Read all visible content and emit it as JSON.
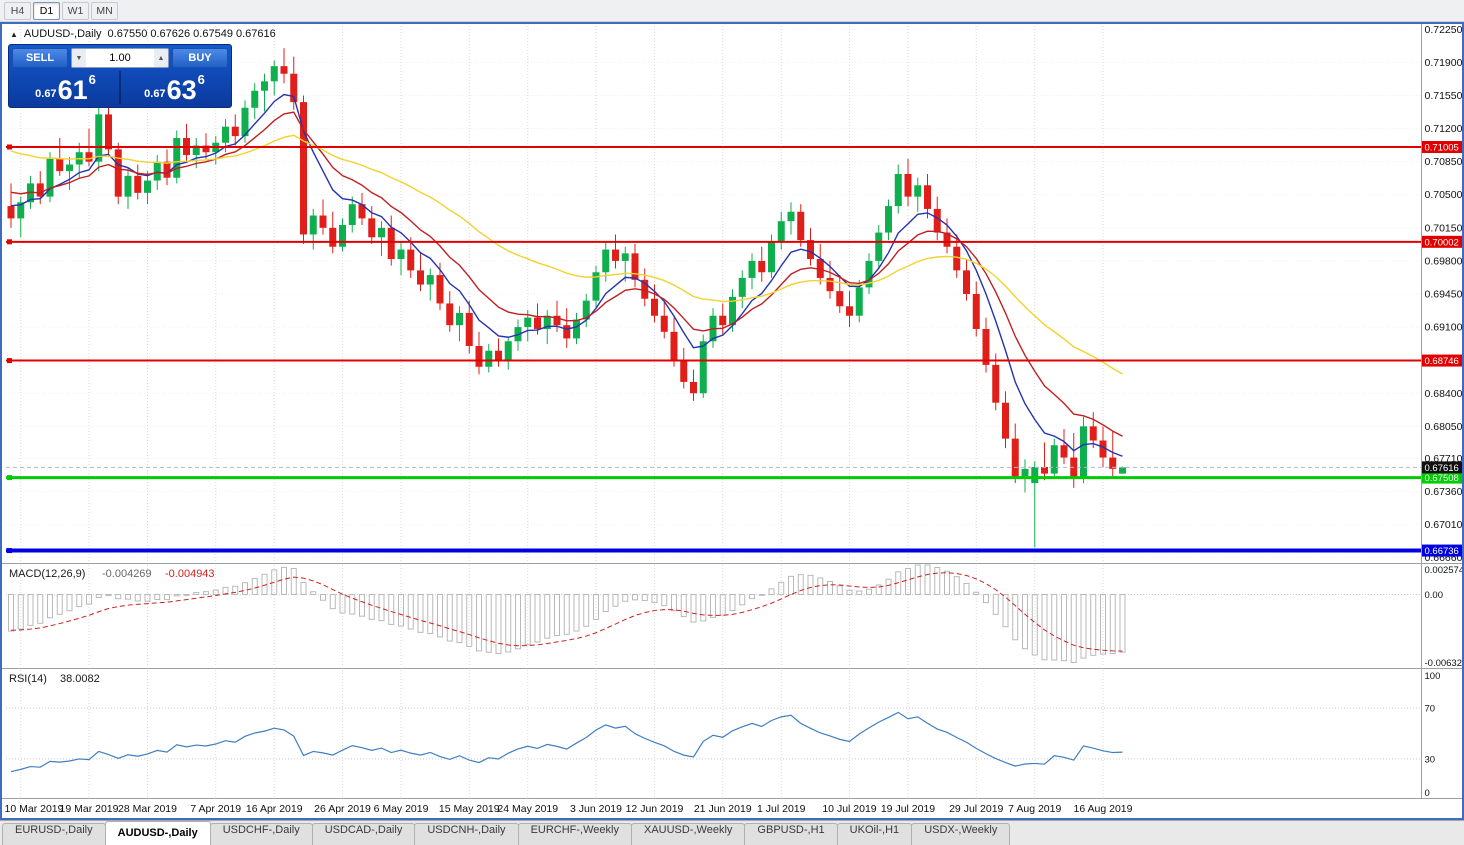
{
  "toolbar": {
    "timeframes": [
      {
        "label": "H4",
        "active": false
      },
      {
        "label": "D1",
        "active": true
      },
      {
        "label": "W1",
        "active": false
      },
      {
        "label": "MN",
        "active": false
      }
    ]
  },
  "chart_title": {
    "symbol": "AUDUSD-,Daily",
    "ohlc": "0.67550 0.67626 0.67549 0.67616"
  },
  "one_click": {
    "sell_label": "SELL",
    "buy_label": "BUY",
    "volume": "1.00",
    "sell_price": {
      "small": "0.67",
      "big": "61",
      "sup": "6"
    },
    "buy_price": {
      "small": "0.67",
      "big": "63",
      "sup": "6"
    }
  },
  "icons": {
    "up_arrow": "▲",
    "down_arrow": "▼",
    "title_marker": "▲"
  },
  "tabs": [
    {
      "label": "EURUSD-,Daily",
      "active": false
    },
    {
      "label": "AUDUSD-,Daily",
      "active": true
    },
    {
      "label": "USDCHF-,Daily",
      "active": false
    },
    {
      "label": "USDCAD-,Daily",
      "active": false
    },
    {
      "label": "USDCNH-,Daily",
      "active": false
    },
    {
      "label": "EURCHF-,Weekly",
      "active": false
    },
    {
      "label": "XAUUSD-,Weekly",
      "active": false
    },
    {
      "label": "GBPUSD-,H1",
      "active": false
    },
    {
      "label": "UKOil-,H1",
      "active": false
    },
    {
      "label": "USDX-,Weekly",
      "active": false
    }
  ],
  "chart_data": {
    "type": "candlestick",
    "symbol": "AUDUSD",
    "timeframe": "Daily",
    "last_ohlc": {
      "open": 0.6755,
      "high": 0.67626,
      "low": 0.67549,
      "close": 0.67616
    },
    "price_scale": {
      "top": 0.72285,
      "bottom": 0.66615
    },
    "y_axis_ticks": [
      "0.72250",
      "0.71900",
      "0.71550",
      "0.71200",
      "0.70850",
      "0.70500",
      "0.70150",
      "0.69800",
      "0.69450",
      "0.69100",
      "0.68750",
      "0.68400",
      "0.68050",
      "0.67710",
      "0.67360",
      "0.67010",
      "0.66660"
    ],
    "x_labels": [
      {
        "index": 1,
        "label": "10 Mar 2019"
      },
      {
        "index": 8,
        "label": "19 Mar 2019"
      },
      {
        "index": 14,
        "label": "28 Mar 2019"
      },
      {
        "index": 21,
        "label": "7 Apr 2019"
      },
      {
        "index": 27,
        "label": "16 Apr 2019"
      },
      {
        "index": 34,
        "label": "26 Apr 2019"
      },
      {
        "index": 40,
        "label": "6 May 2019"
      },
      {
        "index": 47,
        "label": "15 May 2019"
      },
      {
        "index": 53,
        "label": "24 May 2019"
      },
      {
        "index": 60,
        "label": "3 Jun 2019"
      },
      {
        "index": 66,
        "label": "12 Jun 2019"
      },
      {
        "index": 73,
        "label": "21 Jun 2019"
      },
      {
        "index": 79,
        "label": "1 Jul 2019"
      },
      {
        "index": 86,
        "label": "10 Jul 2019"
      },
      {
        "index": 92,
        "label": "19 Jul 2019"
      },
      {
        "index": 99,
        "label": "29 Jul 2019"
      },
      {
        "index": 105,
        "label": "7 Aug 2019"
      },
      {
        "index": 112,
        "label": "16 Aug 2019"
      }
    ],
    "candles": [
      [
        0.7038,
        0.7062,
        0.7015,
        0.7025
      ],
      [
        0.7025,
        0.7048,
        0.7005,
        0.7042
      ],
      [
        0.7042,
        0.707,
        0.7035,
        0.7062
      ],
      [
        0.7062,
        0.7075,
        0.704,
        0.7048
      ],
      [
        0.7048,
        0.7095,
        0.7042,
        0.7088
      ],
      [
        0.7088,
        0.711,
        0.707,
        0.7075
      ],
      [
        0.7075,
        0.709,
        0.7055,
        0.7082
      ],
      [
        0.7082,
        0.7105,
        0.7068,
        0.7095
      ],
      [
        0.7095,
        0.712,
        0.708,
        0.7085
      ],
      [
        0.7085,
        0.7145,
        0.7075,
        0.7135
      ],
      [
        0.7135,
        0.7142,
        0.709,
        0.7098
      ],
      [
        0.7098,
        0.7105,
        0.704,
        0.7048
      ],
      [
        0.7048,
        0.7078,
        0.7035,
        0.707
      ],
      [
        0.707,
        0.7082,
        0.7045,
        0.7052
      ],
      [
        0.7052,
        0.7075,
        0.704,
        0.7065
      ],
      [
        0.7065,
        0.7092,
        0.7055,
        0.7085
      ],
      [
        0.7085,
        0.7098,
        0.706,
        0.7068
      ],
      [
        0.7068,
        0.7118,
        0.7062,
        0.711
      ],
      [
        0.711,
        0.7125,
        0.7085,
        0.7092
      ],
      [
        0.7092,
        0.711,
        0.7078,
        0.7102
      ],
      [
        0.7102,
        0.7115,
        0.7088,
        0.7095
      ],
      [
        0.7095,
        0.7112,
        0.7082,
        0.7105
      ],
      [
        0.7105,
        0.713,
        0.7095,
        0.7122
      ],
      [
        0.7122,
        0.7135,
        0.7102,
        0.7112
      ],
      [
        0.7112,
        0.715,
        0.7105,
        0.7142
      ],
      [
        0.7142,
        0.7168,
        0.713,
        0.716
      ],
      [
        0.716,
        0.7178,
        0.7138,
        0.717
      ],
      [
        0.717,
        0.7192,
        0.7155,
        0.7186
      ],
      [
        0.7186,
        0.7205,
        0.7168,
        0.7178
      ],
      [
        0.7178,
        0.7196,
        0.714,
        0.7148
      ],
      [
        0.7148,
        0.7155,
        0.6998,
        0.7008
      ],
      [
        0.7008,
        0.7035,
        0.6992,
        0.7028
      ],
      [
        0.7028,
        0.7045,
        0.7008,
        0.7015
      ],
      [
        0.7015,
        0.7032,
        0.6988,
        0.6995
      ],
      [
        0.6995,
        0.7025,
        0.699,
        0.7018
      ],
      [
        0.7018,
        0.7048,
        0.701,
        0.704
      ],
      [
        0.704,
        0.7052,
        0.7018,
        0.7025
      ],
      [
        0.7025,
        0.7038,
        0.6998,
        0.7005
      ],
      [
        0.7005,
        0.7022,
        0.6985,
        0.7015
      ],
      [
        0.7015,
        0.7028,
        0.6975,
        0.6982
      ],
      [
        0.6982,
        0.7,
        0.6965,
        0.6992
      ],
      [
        0.6992,
        0.7005,
        0.6962,
        0.697
      ],
      [
        0.697,
        0.6988,
        0.6948,
        0.6955
      ],
      [
        0.6955,
        0.6972,
        0.6938,
        0.6965
      ],
      [
        0.6965,
        0.6978,
        0.6928,
        0.6935
      ],
      [
        0.6935,
        0.6948,
        0.6905,
        0.6912
      ],
      [
        0.6912,
        0.6932,
        0.6895,
        0.6925
      ],
      [
        0.6925,
        0.6938,
        0.6882,
        0.689
      ],
      [
        0.689,
        0.6905,
        0.686,
        0.6868
      ],
      [
        0.6868,
        0.6892,
        0.6862,
        0.6885
      ],
      [
        0.6885,
        0.6898,
        0.6868,
        0.6875
      ],
      [
        0.6875,
        0.69,
        0.6865,
        0.6895
      ],
      [
        0.6895,
        0.6918,
        0.6885,
        0.691
      ],
      [
        0.691,
        0.6928,
        0.6895,
        0.692
      ],
      [
        0.692,
        0.6935,
        0.6902,
        0.6908
      ],
      [
        0.6908,
        0.6928,
        0.6892,
        0.6922
      ],
      [
        0.6922,
        0.6938,
        0.6905,
        0.6912
      ],
      [
        0.6912,
        0.693,
        0.6888,
        0.6898
      ],
      [
        0.6898,
        0.6925,
        0.6892,
        0.6918
      ],
      [
        0.6918,
        0.6945,
        0.691,
        0.6938
      ],
      [
        0.6938,
        0.6975,
        0.693,
        0.6968
      ],
      [
        0.6968,
        0.7,
        0.6958,
        0.6992
      ],
      [
        0.6992,
        0.7008,
        0.6972,
        0.698
      ],
      [
        0.698,
        0.6995,
        0.6958,
        0.6988
      ],
      [
        0.6988,
        0.6998,
        0.6952,
        0.696
      ],
      [
        0.696,
        0.6972,
        0.6932,
        0.694
      ],
      [
        0.694,
        0.6955,
        0.6915,
        0.6922
      ],
      [
        0.6922,
        0.6938,
        0.6898,
        0.6905
      ],
      [
        0.6905,
        0.692,
        0.6868,
        0.6875
      ],
      [
        0.6875,
        0.6888,
        0.6845,
        0.6852
      ],
      [
        0.6852,
        0.6865,
        0.6832,
        0.684
      ],
      [
        0.684,
        0.6902,
        0.6835,
        0.6895
      ],
      [
        0.6895,
        0.693,
        0.6888,
        0.6922
      ],
      [
        0.6922,
        0.6935,
        0.6902,
        0.6912
      ],
      [
        0.6912,
        0.695,
        0.6905,
        0.6942
      ],
      [
        0.6942,
        0.697,
        0.693,
        0.6962
      ],
      [
        0.6962,
        0.6988,
        0.695,
        0.698
      ],
      [
        0.698,
        0.6995,
        0.6958,
        0.6968
      ],
      [
        0.6968,
        0.7008,
        0.6962,
        0.7
      ],
      [
        0.7,
        0.7032,
        0.6992,
        0.7022
      ],
      [
        0.7022,
        0.7042,
        0.7008,
        0.7032
      ],
      [
        0.7032,
        0.704,
        0.6995,
        0.7002
      ],
      [
        0.7002,
        0.7015,
        0.6975,
        0.6982
      ],
      [
        0.6982,
        0.6998,
        0.6955,
        0.6962
      ],
      [
        0.6962,
        0.698,
        0.694,
        0.6948
      ],
      [
        0.6948,
        0.6965,
        0.6925,
        0.6932
      ],
      [
        0.6932,
        0.6948,
        0.691,
        0.6922
      ],
      [
        0.6922,
        0.696,
        0.6915,
        0.6952
      ],
      [
        0.6952,
        0.6988,
        0.6945,
        0.698
      ],
      [
        0.698,
        0.7018,
        0.6972,
        0.701
      ],
      [
        0.701,
        0.7045,
        0.7002,
        0.7038
      ],
      [
        0.7038,
        0.7082,
        0.703,
        0.7072
      ],
      [
        0.7072,
        0.7088,
        0.7038,
        0.7048
      ],
      [
        0.7048,
        0.7068,
        0.7032,
        0.706
      ],
      [
        0.706,
        0.7072,
        0.7025,
        0.7035
      ],
      [
        0.7035,
        0.7048,
        0.7002,
        0.701
      ],
      [
        0.701,
        0.7025,
        0.6988,
        0.6995
      ],
      [
        0.6995,
        0.7008,
        0.6962,
        0.697
      ],
      [
        0.697,
        0.6982,
        0.6938,
        0.6945
      ],
      [
        0.6945,
        0.6958,
        0.69,
        0.6908
      ],
      [
        0.6908,
        0.692,
        0.6862,
        0.687
      ],
      [
        0.687,
        0.6882,
        0.6822,
        0.683
      ],
      [
        0.683,
        0.6842,
        0.6782,
        0.6792
      ],
      [
        0.6792,
        0.6808,
        0.6745,
        0.6752
      ],
      [
        0.6752,
        0.677,
        0.6735,
        0.676
      ],
      [
        0.6745,
        0.6768,
        0.6677,
        0.6762
      ],
      [
        0.6762,
        0.6788,
        0.6748,
        0.6755
      ],
      [
        0.6755,
        0.6792,
        0.675,
        0.6785
      ],
      [
        0.6785,
        0.6802,
        0.6765,
        0.6772
      ],
      [
        0.6772,
        0.6798,
        0.674,
        0.675
      ],
      [
        0.675,
        0.6815,
        0.6745,
        0.6805
      ],
      [
        0.6805,
        0.682,
        0.6782,
        0.679
      ],
      [
        0.679,
        0.6805,
        0.6762,
        0.6772
      ],
      [
        0.6772,
        0.68,
        0.6752,
        0.676
      ],
      [
        0.6755,
        0.67626,
        0.67549,
        0.67616
      ]
    ],
    "prior_closes_for_indicators": [
      0.7198,
      0.7185,
      0.719,
      0.7172,
      0.716,
      0.7165,
      0.7148,
      0.7152,
      0.7135,
      0.714,
      0.7122,
      0.7128,
      0.711,
      0.7115,
      0.7098,
      0.7105,
      0.7088,
      0.7092,
      0.7075,
      0.708,
      0.7062,
      0.7068,
      0.7052,
      0.7058,
      0.7042,
      0.7048,
      0.7035,
      0.7042,
      0.703,
      0.7036
    ],
    "moving_averages": [
      {
        "type": "ema",
        "period": 7,
        "color": "#2433b0"
      },
      {
        "type": "ema",
        "period": 13,
        "color": "#bf2020"
      },
      {
        "type": "ema",
        "period": 34,
        "color": "#f2d22e"
      }
    ],
    "colors": {
      "up": "#0faf4f",
      "down": "#e01f1a",
      "grid": "#dadada",
      "current_price_line": "#b8b8b8"
    },
    "horizontal_lines": [
      {
        "price": 0.71005,
        "label": "0.71005",
        "color": "#e00000",
        "width": 2
      },
      {
        "price": 0.70002,
        "label": "0.70002",
        "color": "#e00000",
        "width": 2
      },
      {
        "price": 0.68746,
        "label": "0.68746",
        "color": "#e00000",
        "width": 2
      },
      {
        "price": 0.67508,
        "label": "0.67508",
        "color": "#00cc00",
        "width": 3
      },
      {
        "price": 0.66736,
        "label": "0.66736",
        "color": "#0000e0",
        "width": 4
      }
    ],
    "current_price": {
      "price": 0.67616,
      "label": "0.67616",
      "box_color": "#111111"
    },
    "indicators": {
      "macd": {
        "label": "MACD(12,26,9)",
        "value_main": "-0.004269",
        "value_signal": "-0.004943",
        "params": [
          12,
          26,
          9
        ],
        "range": {
          "max": 0.002574,
          "min": -0.006326
        },
        "axis_labels": [
          "0.0025740",
          "0.00",
          "-0.0063260"
        ],
        "colors": {
          "histogram": "#b9b9b9",
          "signal": "#cc2222"
        }
      },
      "rsi": {
        "label": "RSI(14)",
        "value": "38.0082",
        "period": 14,
        "levels": [
          70,
          30
        ],
        "axis_labels": [
          "100",
          "70",
          "30",
          "0"
        ],
        "color": "#3e7fc1"
      }
    }
  }
}
